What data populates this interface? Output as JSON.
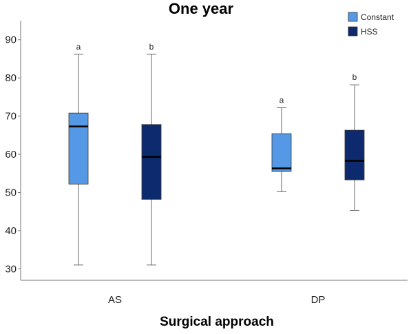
{
  "chart_data": {
    "type": "box",
    "title": "One year",
    "xlabel": "Surgical approach",
    "ylabel": "",
    "ylim": [
      27,
      95
    ],
    "yticks": [
      30,
      40,
      50,
      60,
      70,
      80,
      90
    ],
    "categories": [
      "AS",
      "DP"
    ],
    "legend_position": "top-right",
    "grid": false,
    "series": [
      {
        "name": "Constant",
        "color": "#5599e6",
        "boxes": [
          {
            "category": "AS",
            "min": 31,
            "q1": 52.2,
            "median": 67.3,
            "q3": 70.8,
            "max": 86.2,
            "label": "a"
          },
          {
            "category": "DP",
            "min": 50.2,
            "q1": 55.5,
            "median": 56.3,
            "q3": 65.4,
            "max": 72.2,
            "label": "a"
          }
        ]
      },
      {
        "name": "HSS",
        "color": "#0e2a6e",
        "boxes": [
          {
            "category": "AS",
            "min": 31,
            "q1": 48.2,
            "median": 59.3,
            "q3": 67.8,
            "max": 86.2,
            "label": "b"
          },
          {
            "category": "DP",
            "min": 45.3,
            "q1": 53.3,
            "median": 58.3,
            "q3": 66.3,
            "max": 78.2,
            "label": "b"
          }
        ]
      }
    ]
  }
}
